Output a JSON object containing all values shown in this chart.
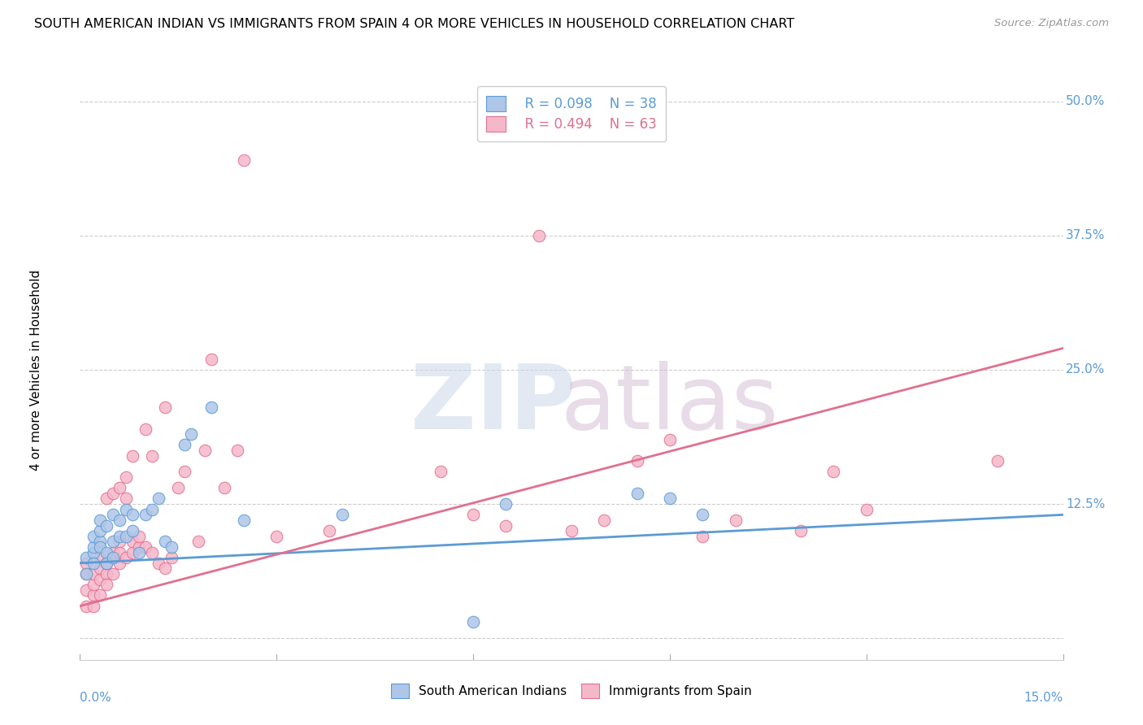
{
  "title": "SOUTH AMERICAN INDIAN VS IMMIGRANTS FROM SPAIN 4 OR MORE VEHICLES IN HOUSEHOLD CORRELATION CHART",
  "source": "Source: ZipAtlas.com",
  "ylabel": "4 or more Vehicles in Household",
  "legend_label_blue": "South American Indians",
  "legend_label_pink": "Immigrants from Spain",
  "blue_R": "R = 0.098",
  "blue_N": "N = 38",
  "pink_R": "R = 0.494",
  "pink_N": "N = 63",
  "blue_color": "#aec6e8",
  "blue_edge": "#5b9bd5",
  "pink_color": "#f5b8cb",
  "pink_edge": "#e07090",
  "blue_line_color": "#5b9bd5",
  "pink_line_color": "#e07090",
  "xmin": 0.0,
  "xmax": 0.15,
  "ymin": -0.02,
  "ymax": 0.52,
  "ytick_values": [
    0.0,
    0.125,
    0.25,
    0.375,
    0.5
  ],
  "ytick_labels": [
    "",
    "12.5%",
    "25.0%",
    "37.5%",
    "50.0%"
  ],
  "blue_line_y0": 0.07,
  "blue_line_y1": 0.115,
  "pink_line_y0": 0.03,
  "pink_line_y1": 0.27,
  "blue_scatter_x": [
    0.001,
    0.001,
    0.002,
    0.002,
    0.002,
    0.002,
    0.003,
    0.003,
    0.003,
    0.003,
    0.004,
    0.004,
    0.004,
    0.005,
    0.005,
    0.005,
    0.006,
    0.006,
    0.007,
    0.007,
    0.008,
    0.008,
    0.009,
    0.01,
    0.011,
    0.012,
    0.013,
    0.014,
    0.016,
    0.017,
    0.02,
    0.025,
    0.04,
    0.065,
    0.085,
    0.09,
    0.095,
    0.06
  ],
  "blue_scatter_y": [
    0.06,
    0.075,
    0.08,
    0.085,
    0.095,
    0.07,
    0.09,
    0.1,
    0.085,
    0.11,
    0.105,
    0.08,
    0.07,
    0.115,
    0.09,
    0.075,
    0.095,
    0.11,
    0.12,
    0.095,
    0.1,
    0.115,
    0.08,
    0.115,
    0.12,
    0.13,
    0.09,
    0.085,
    0.18,
    0.19,
    0.215,
    0.11,
    0.115,
    0.125,
    0.135,
    0.13,
    0.115,
    0.015
  ],
  "pink_scatter_x": [
    0.001,
    0.001,
    0.001,
    0.001,
    0.002,
    0.002,
    0.002,
    0.002,
    0.003,
    0.003,
    0.003,
    0.003,
    0.004,
    0.004,
    0.004,
    0.004,
    0.005,
    0.005,
    0.005,
    0.006,
    0.006,
    0.006,
    0.006,
    0.007,
    0.007,
    0.007,
    0.008,
    0.008,
    0.008,
    0.009,
    0.009,
    0.01,
    0.01,
    0.011,
    0.011,
    0.012,
    0.013,
    0.013,
    0.014,
    0.015,
    0.016,
    0.018,
    0.019,
    0.02,
    0.022,
    0.024,
    0.025,
    0.03,
    0.038,
    0.055,
    0.06,
    0.065,
    0.07,
    0.075,
    0.08,
    0.085,
    0.09,
    0.095,
    0.1,
    0.11,
    0.115,
    0.12,
    0.14
  ],
  "pink_scatter_y": [
    0.03,
    0.045,
    0.06,
    0.07,
    0.04,
    0.05,
    0.06,
    0.03,
    0.055,
    0.065,
    0.075,
    0.04,
    0.06,
    0.07,
    0.05,
    0.13,
    0.08,
    0.06,
    0.135,
    0.07,
    0.08,
    0.09,
    0.14,
    0.075,
    0.13,
    0.15,
    0.08,
    0.09,
    0.17,
    0.085,
    0.095,
    0.195,
    0.085,
    0.08,
    0.17,
    0.07,
    0.215,
    0.065,
    0.075,
    0.14,
    0.155,
    0.09,
    0.175,
    0.26,
    0.14,
    0.175,
    0.445,
    0.095,
    0.1,
    0.155,
    0.115,
    0.105,
    0.375,
    0.1,
    0.11,
    0.165,
    0.185,
    0.095,
    0.11,
    0.1,
    0.155,
    0.12,
    0.165
  ]
}
